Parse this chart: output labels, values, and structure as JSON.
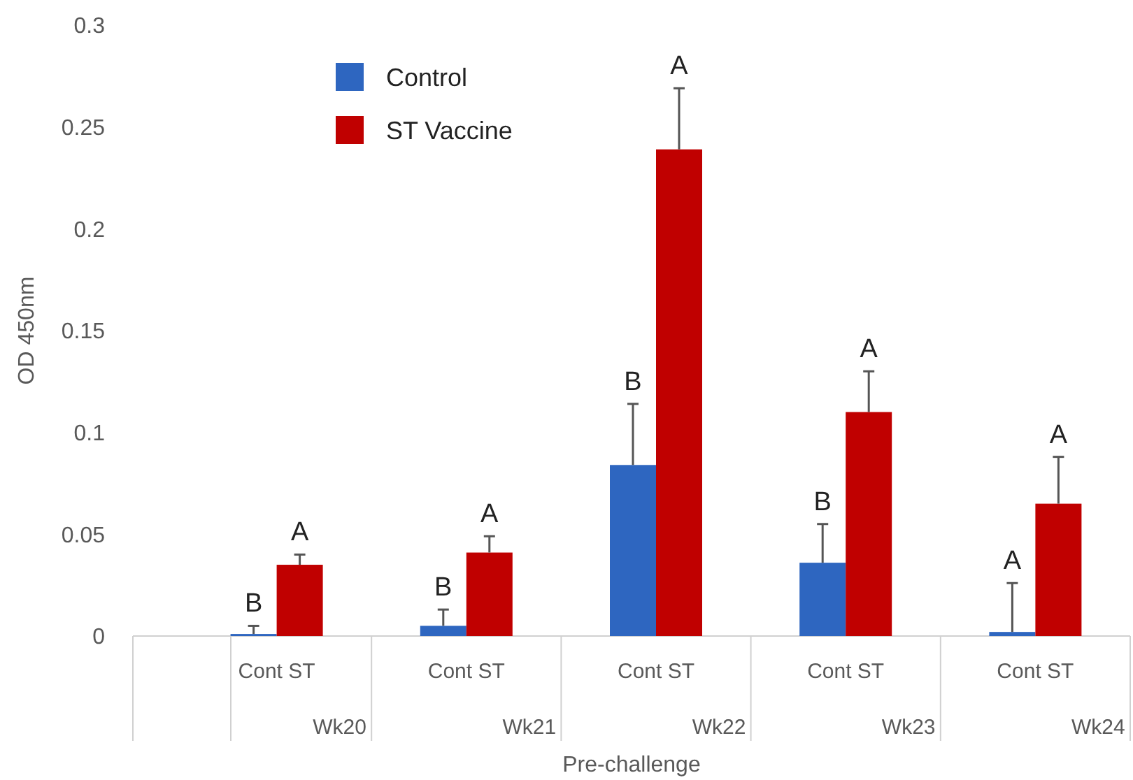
{
  "chart_data": {
    "type": "bar",
    "xlabel": "Pre-challenge",
    "ylabel": "OD 450nm",
    "categories": [
      "Wk20",
      "Wk21",
      "Wk22",
      "Wk23",
      "Wk24"
    ],
    "series": [
      {
        "name": "Control",
        "color": "#2e66c0",
        "values": [
          0.001,
          0.005,
          0.084,
          0.036,
          0.002
        ],
        "errors": [
          [
            0.001,
            0.005
          ],
          [
            0.005,
            0.013
          ],
          [
            0.084,
            0.114
          ],
          [
            0.036,
            0.055
          ],
          [
            0.002,
            0.026
          ]
        ],
        "value_labels": [
          "B",
          "B",
          "B",
          "B",
          "A"
        ]
      },
      {
        "name": "ST Vaccine",
        "color": "#c00000",
        "values": [
          0.035,
          0.041,
          0.239,
          0.11,
          0.065
        ],
        "errors": [
          [
            0.035,
            0.04
          ],
          [
            0.041,
            0.049
          ],
          [
            0.239,
            0.269
          ],
          [
            0.11,
            0.13
          ],
          [
            0.065,
            0.088
          ]
        ],
        "value_labels": [
          "A",
          "A",
          "A",
          "A",
          "A"
        ]
      }
    ],
    "annotations": [
      "Cont ST",
      "Cont ST",
      "Cont ST",
      "Cont ST",
      "Cont ST"
    ],
    "ylim": [
      0,
      0.3
    ],
    "yticks": [
      0,
      0.05,
      0.1,
      0.15,
      0.2,
      0.25,
      0.3
    ],
    "grid": false,
    "legend": "top left"
  }
}
